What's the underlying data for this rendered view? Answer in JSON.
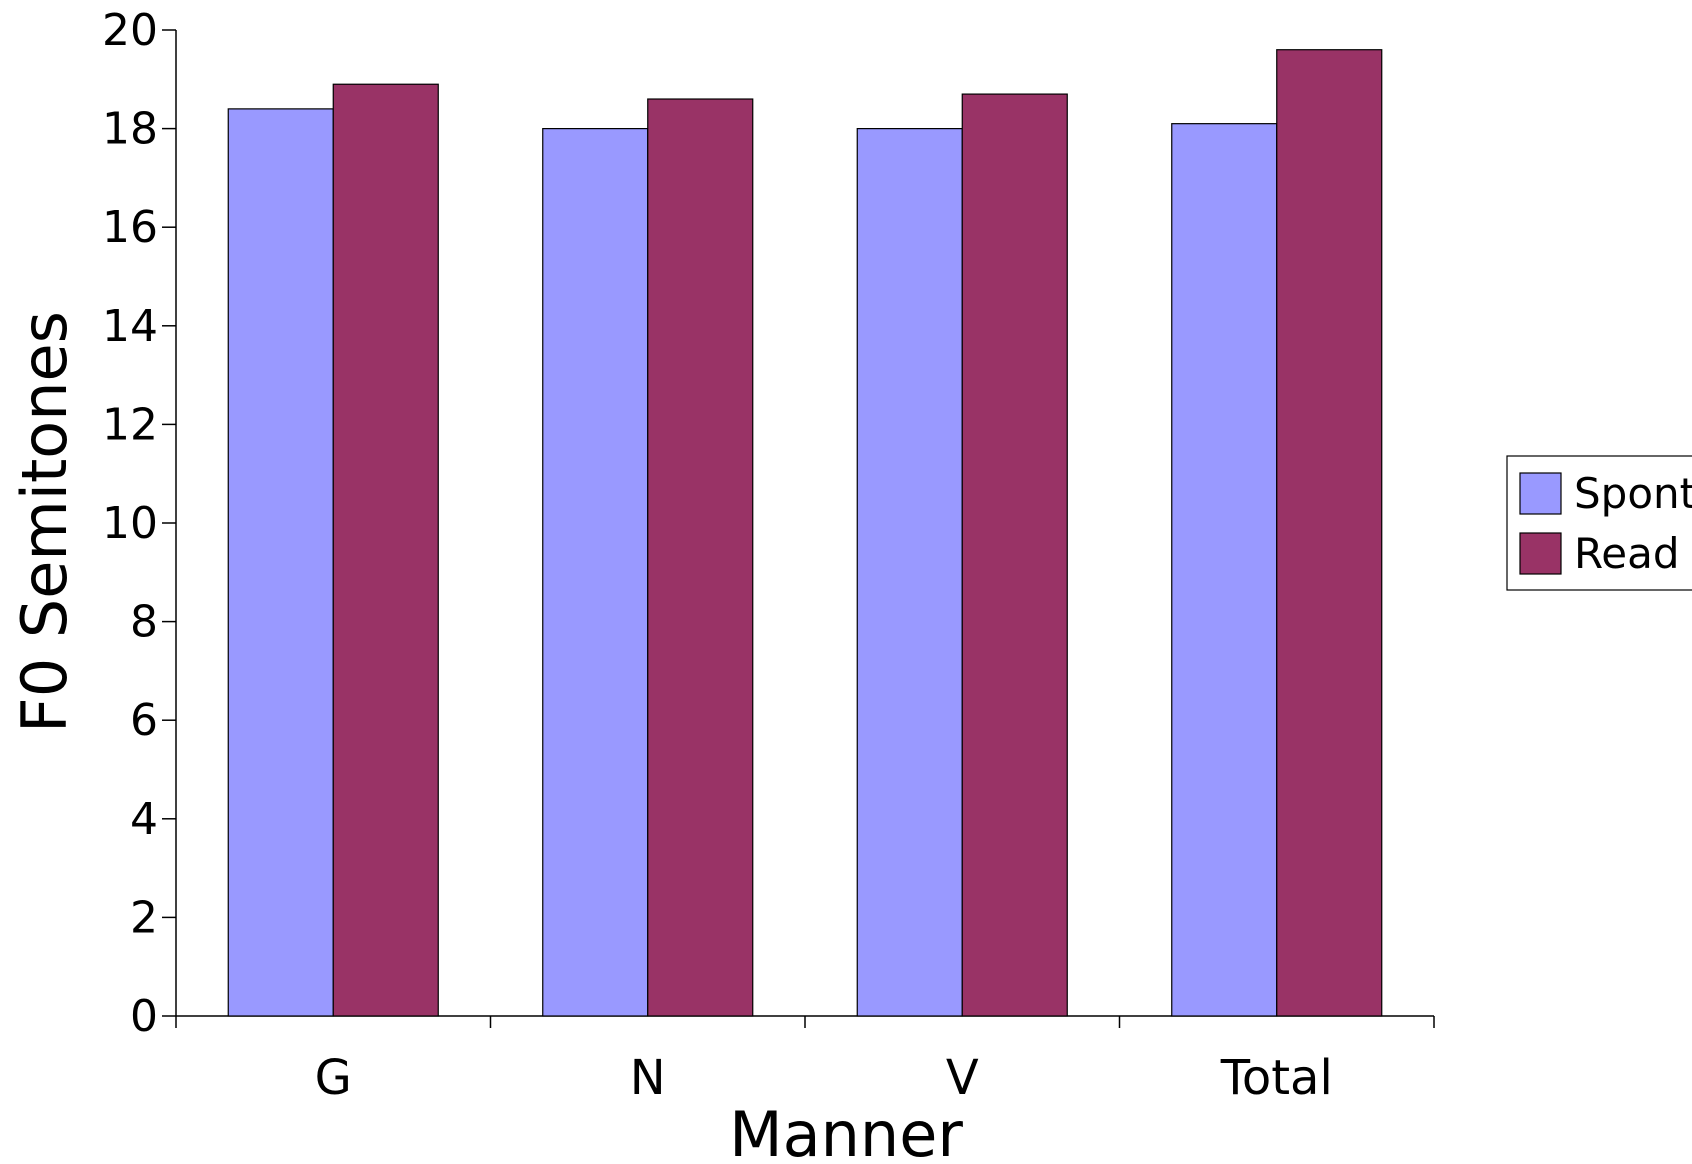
{
  "chart_data": {
    "type": "bar",
    "title": "",
    "xlabel": "Manner",
    "ylabel": "F0 Semitones",
    "categories": [
      "G",
      "N",
      "V",
      "Total"
    ],
    "series": [
      {
        "name": "Spont",
        "values": [
          18.4,
          18.0,
          18.0,
          18.1
        ],
        "color": "#9999ff"
      },
      {
        "name": "Read",
        "values": [
          18.9,
          18.6,
          18.7,
          19.6
        ],
        "color": "#993366"
      }
    ],
    "ylim": [
      0,
      20
    ],
    "yticks": [
      "0",
      "2",
      "4",
      "6",
      "8",
      "10",
      "12",
      "14",
      "16",
      "18",
      "20"
    ],
    "grid": false,
    "legend_position": "right"
  }
}
